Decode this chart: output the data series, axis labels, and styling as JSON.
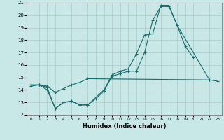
{
  "title": "",
  "xlabel": "Humidex (Indice chaleur)",
  "ylabel": "",
  "bg_color": "#c8e8e8",
  "grid_color": "#b0c8c8",
  "line_color": "#1a6b6b",
  "xlim": [
    -0.5,
    23.5
  ],
  "ylim": [
    12,
    21
  ],
  "yticks": [
    12,
    13,
    14,
    15,
    16,
    17,
    18,
    19,
    20,
    21
  ],
  "xticks": [
    0,
    1,
    2,
    3,
    4,
    5,
    6,
    7,
    8,
    9,
    10,
    11,
    12,
    13,
    14,
    15,
    16,
    17,
    18,
    19,
    20,
    21,
    22,
    23
  ],
  "series": [
    {
      "x": [
        0,
        1,
        2,
        3,
        4,
        5,
        6,
        7,
        8,
        9,
        10,
        11,
        12,
        13,
        14,
        15,
        16,
        17,
        18,
        19,
        20
      ],
      "y": [
        14.4,
        14.4,
        14.0,
        12.5,
        13.0,
        13.1,
        12.8,
        12.8,
        13.3,
        13.9,
        15.1,
        15.3,
        15.5,
        15.5,
        17.0,
        19.6,
        20.7,
        20.7,
        19.2,
        17.5,
        16.6
      ]
    },
    {
      "x": [
        0,
        1,
        2,
        3,
        4,
        5,
        6,
        7,
        9,
        10,
        11,
        12,
        13,
        14,
        15,
        16,
        17,
        18,
        22
      ],
      "y": [
        14.4,
        14.4,
        14.2,
        12.5,
        13.0,
        13.1,
        12.8,
        12.8,
        14.0,
        15.2,
        15.5,
        15.7,
        16.9,
        18.4,
        18.5,
        20.8,
        20.8,
        19.2,
        14.8
      ]
    },
    {
      "x": [
        0,
        1,
        2,
        3,
        4,
        5,
        6,
        7,
        22,
        23
      ],
      "y": [
        14.3,
        14.4,
        14.3,
        13.8,
        14.1,
        14.4,
        14.6,
        14.9,
        14.8,
        14.7
      ]
    }
  ]
}
